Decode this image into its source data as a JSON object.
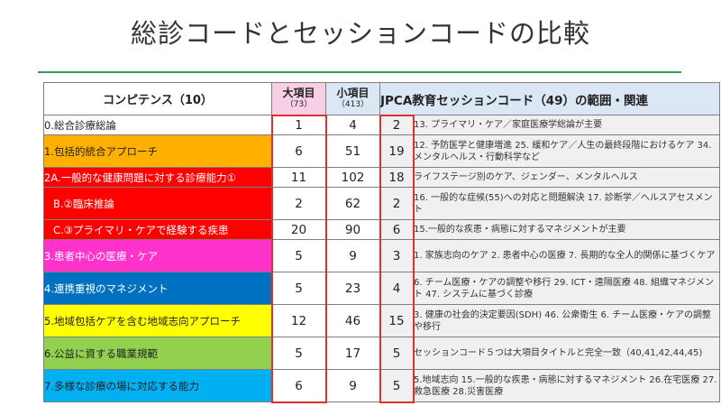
{
  "title": "総診コードとセッションコードの比較",
  "table": {
    "headers": {
      "competence": "コンピテンス（10）",
      "big_item": "大項目",
      "big_item_count": "（73）",
      "small_item": "小項目",
      "small_item_count": "（413）",
      "jpca": "JPCA教育セッションコード（49）の範囲・関連"
    },
    "rows": [
      {
        "competence": "0.総合診療総論",
        "big": "1",
        "small": "4",
        "jpca": "2",
        "desc": "13. プライマリ・ケア／家庭医療学総論が主要",
        "bg": "#ffffff",
        "fg": "#222222"
      },
      {
        "competence": "1.包括的統合アプローチ",
        "big": "6",
        "small": "51",
        "jpca": "19",
        "desc": "12. 予防医学と健康増進 25. 緩和ケア／人生の最終段階におけるケア 34. メンタルヘルス・行動科学など",
        "bg": "#ffb000",
        "fg": "#222222"
      },
      {
        "competence": "2A.一般的な健康問題に対する診療能力①",
        "big": "11",
        "small": "102",
        "jpca": "18",
        "desc": "ライフステージ別のケア、ジェンダー、メンタルヘルス",
        "bg": "#ff0000",
        "fg": "#ffffff"
      },
      {
        "competence": "B.②臨床推論",
        "big": "2",
        "small": "62",
        "jpca": "2",
        "desc": "16. 一般的な症候(55)への対応と問題解決 17. 診断学／ヘルスアセスメント",
        "bg": "#ff0000",
        "fg": "#ffffff",
        "indent": true
      },
      {
        "competence": "C.③プライマリ・ケアで経験する疾患",
        "big": "20",
        "small": "90",
        "jpca": "6",
        "desc": "15.一般的な疾患・病態に対するマネジメントが主要",
        "bg": "#ff0000",
        "fg": "#ffffff",
        "indent": true
      },
      {
        "competence": "3.患者中心の医療・ケア",
        "big": "5",
        "small": "9",
        "jpca": "3",
        "desc": "1. 家族志向のケア 2. 患者中心の医療 7. 長期的な全人的関係に基づくケア",
        "bg": "#ff33cc",
        "fg": "#ffffff"
      },
      {
        "competence": "4.連携重視のマネジメント",
        "big": "5",
        "small": "23",
        "jpca": "4",
        "desc": "6. チーム医療・ケアの調整や移行 29. ICT・遠隔医療 48. 組織マネジメント 47. システムに基づく診療",
        "bg": "#0070c0",
        "fg": "#ffffff"
      },
      {
        "competence": "5.地域包括ケアを含む地域志向アプローチ",
        "big": "12",
        "small": "46",
        "jpca": "15",
        "desc": "3. 健康の社会的決定要因(SDH) 46. 公衆衛生 6. チーム医療・ケアの調整や移行",
        "bg": "#ffff00",
        "fg": "#222222"
      },
      {
        "competence": "6.公益に資する職業規範",
        "big": "5",
        "small": "17",
        "jpca": "5",
        "desc": "セッションコード５つは大項目タイトルと完全一致（40,41,42,44,45)",
        "bg": "#92d050",
        "fg": "#222222"
      },
      {
        "competence": "7.多様な診療の場に対応する能力",
        "big": "6",
        "small": "9",
        "jpca": "5",
        "desc": "5.地域志向 15.一般的な疾患・病態に対するマネジメント 26.在宅医療 27.救急医療 28.災害医療",
        "bg": "#00b0f0",
        "fg": "#222222"
      }
    ]
  }
}
